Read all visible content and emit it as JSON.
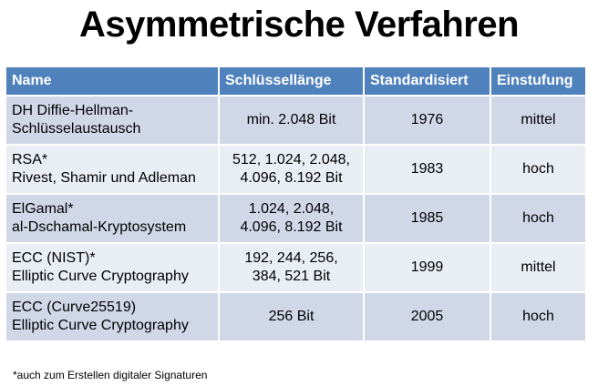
{
  "title": "Asymmetrische Verfahren",
  "table": {
    "headers": {
      "name": "Name",
      "key_length": "Schlüssellänge",
      "standardized": "Standardisiert",
      "rating": "Einstufung"
    },
    "rows": [
      {
        "name_line1": "DH Diffie-Hellman-",
        "name_line2": "Schlüsselaustausch",
        "key_line1": "min. 2.048 Bit",
        "key_line2": "",
        "year": "1976",
        "rating": "mittel"
      },
      {
        "name_line1": "RSA*",
        "name_line2": "Rivest, Shamir und Adleman",
        "key_line1": "512, 1.024, 2.048,",
        "key_line2": "4.096,  8.192 Bit",
        "year": "1983",
        "rating": "hoch"
      },
      {
        "name_line1": "ElGamal*",
        "name_line2": "al-Dschamal-Kryptosystem",
        "key_line1": "1.024, 2.048,",
        "key_line2": "4.096,  8.192 Bit",
        "year": "1985",
        "rating": "hoch"
      },
      {
        "name_line1": "ECC (NIST)*",
        "name_line2": "Elliptic Curve Cryptography",
        "key_line1": "192, 244, 256,",
        "key_line2": "384, 521 Bit",
        "year": "1999",
        "rating": "mittel"
      },
      {
        "name_line1": "ECC (Curve25519)",
        "name_line2": "Elliptic Curve Cryptography",
        "key_line1": "256 Bit",
        "key_line2": "",
        "year": "2005",
        "rating": "hoch"
      }
    ]
  },
  "footnote": "*auch zum Erstellen digitaler Signaturen",
  "colors": {
    "header_bg": "#4f81bd",
    "row_odd_bg": "#d0d8e8",
    "row_even_bg": "#e9edf4"
  }
}
